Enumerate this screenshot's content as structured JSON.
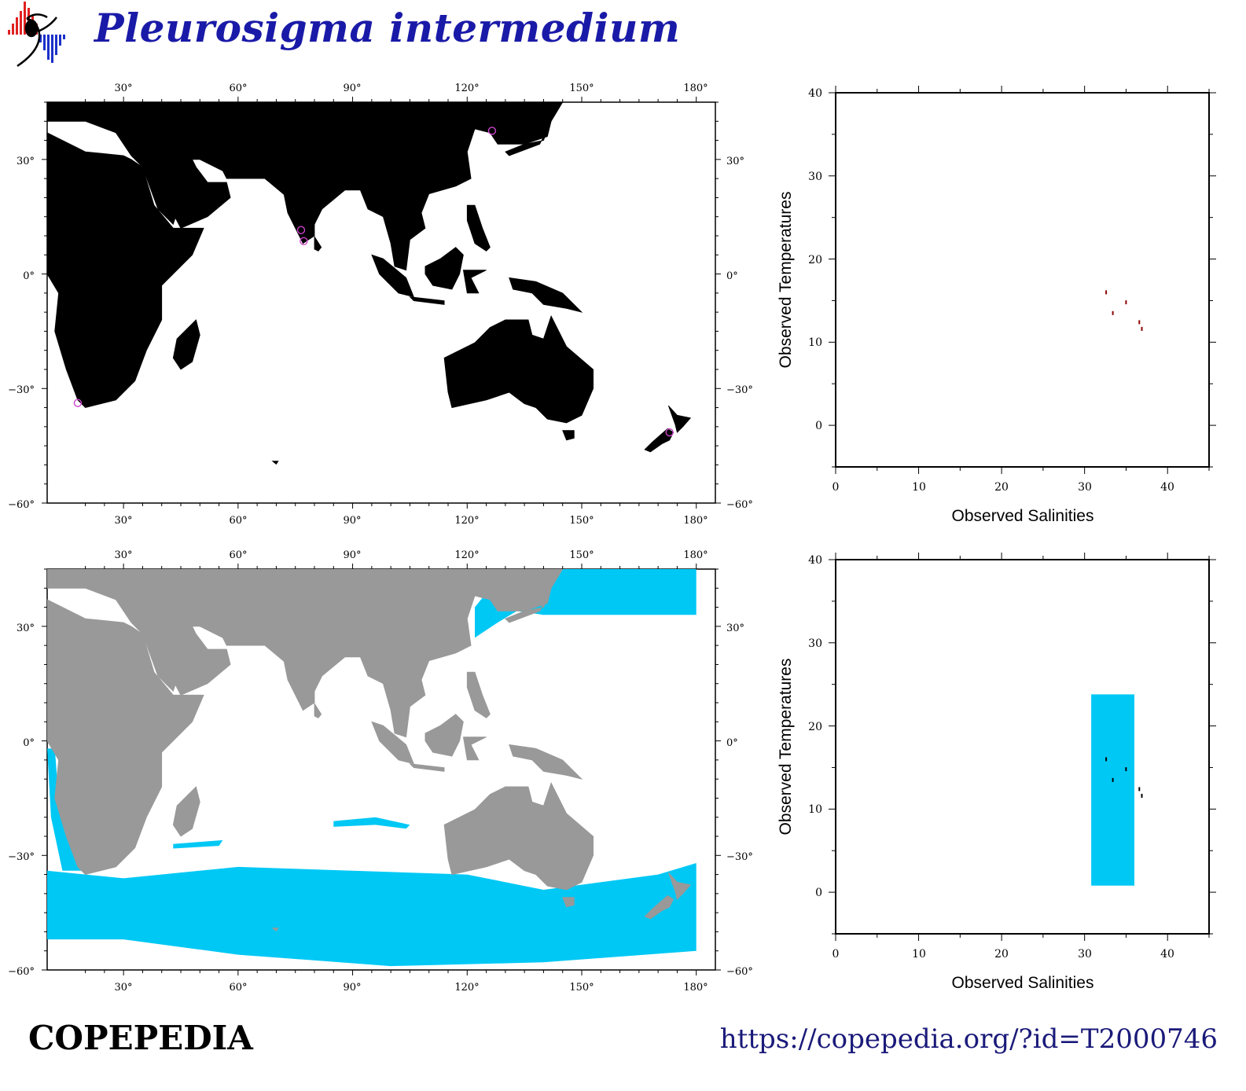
{
  "header": {
    "title": "Pleurosigma intermedium",
    "logo_icon": "copepod-logo-icon"
  },
  "map_top": {
    "x_ticks": [
      "30°",
      "60°",
      "90°",
      "120°",
      "150°",
      "180°"
    ],
    "y_ticks_left": [
      "30°",
      "0°",
      "−30°",
      "−60°"
    ],
    "y_ticks_right": [
      "30°",
      "0°",
      "−30°",
      "−60°"
    ],
    "land_color": "#000000",
    "ocean_color": "#ffffff",
    "marker_color": "#cc44cc",
    "observations": [
      {
        "lon": 126.5,
        "lat": 37.5
      },
      {
        "lon": 76.5,
        "lat": 11.5
      },
      {
        "lon": 77.2,
        "lat": 8.6
      },
      {
        "lon": 18.0,
        "lat": -33.8
      },
      {
        "lon": 173.0,
        "lat": -41.5
      }
    ]
  },
  "map_bottom": {
    "x_ticks": [
      "30°",
      "60°",
      "90°",
      "120°",
      "150°",
      "180°"
    ],
    "y_ticks_left": [
      "30°",
      "0°",
      "−30°",
      "−60°"
    ],
    "y_ticks_right": [
      "30°",
      "0°",
      "−30°",
      "−60°"
    ],
    "land_color": "#999999",
    "habitat_color": "#00c8f5"
  },
  "plot_top": {
    "xlabel": "Observed Salinities",
    "ylabel": "Observed Temperatures",
    "x_ticks": [
      "0",
      "10",
      "20",
      "30",
      "40"
    ],
    "y_ticks": [
      "40",
      "30",
      "20",
      "10",
      "0"
    ],
    "xlim": [
      0,
      45
    ],
    "ylim": [
      -5,
      40
    ],
    "points_color": "#8b0000",
    "points": [
      {
        "s": 32.6,
        "t": 16.0
      },
      {
        "s": 35.0,
        "t": 14.8
      },
      {
        "s": 33.4,
        "t": 13.5
      },
      {
        "s": 36.6,
        "t": 12.4
      },
      {
        "s": 36.9,
        "t": 11.6
      }
    ]
  },
  "plot_bottom": {
    "xlabel": "Observed Salinities",
    "ylabel": "Observed Temperatures",
    "x_ticks": [
      "0",
      "10",
      "20",
      "30",
      "40"
    ],
    "y_ticks": [
      "40",
      "30",
      "20",
      "10",
      "0"
    ],
    "xlim": [
      0,
      45
    ],
    "ylim": [
      -5,
      40
    ],
    "range_color": "#00c8f5",
    "range": {
      "s_min": 30.8,
      "s_max": 36.0,
      "t_min": 0.8,
      "t_max": 23.8
    },
    "points_color": "#000000",
    "points": [
      {
        "s": 32.6,
        "t": 16.0
      },
      {
        "s": 35.0,
        "t": 14.8
      },
      {
        "s": 33.4,
        "t": 13.5
      },
      {
        "s": 36.6,
        "t": 12.4
      },
      {
        "s": 36.9,
        "t": 11.6
      }
    ]
  },
  "footer": {
    "brand": "COPEPEDIA",
    "url": "https://copepedia.org/?id=T2000746"
  }
}
